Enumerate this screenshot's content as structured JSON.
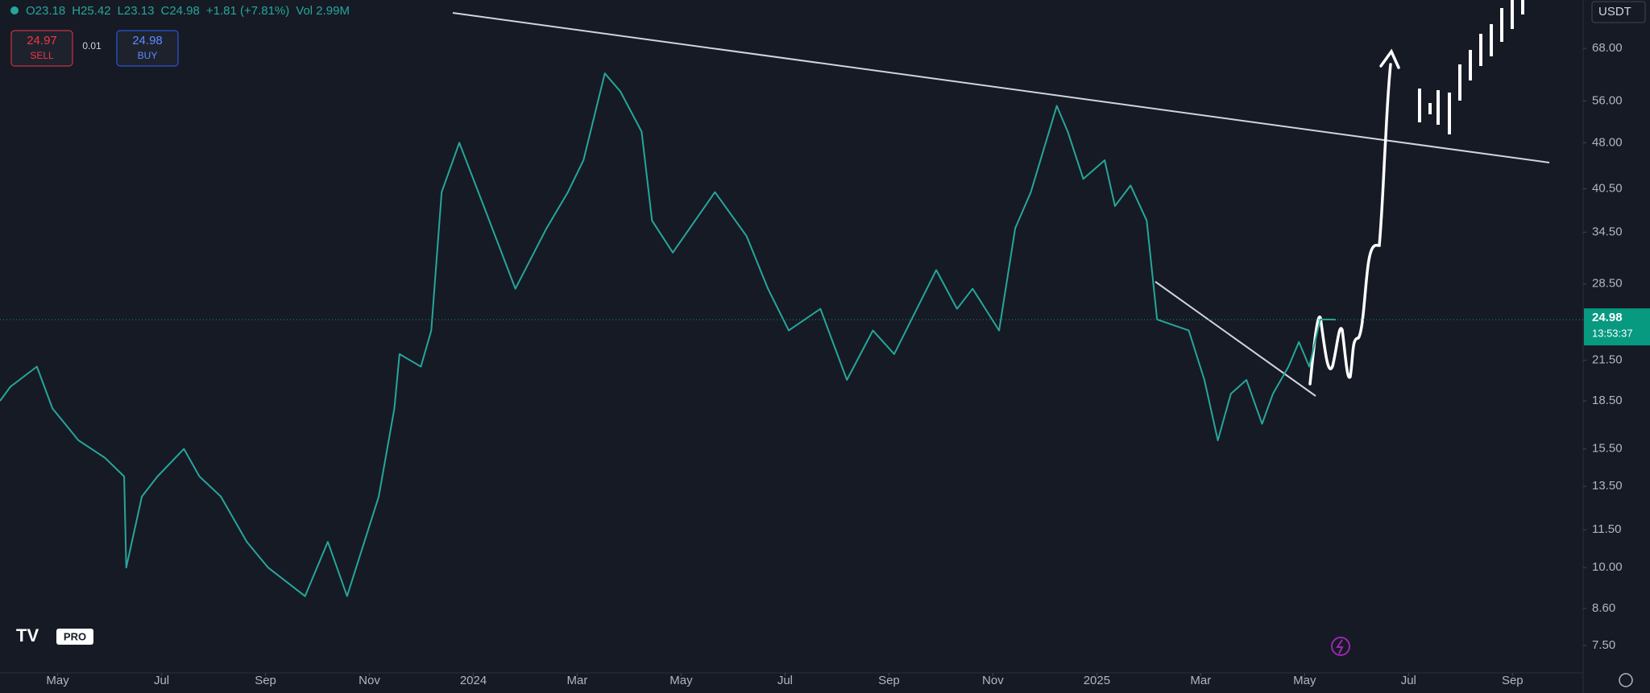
{
  "toolbar": {
    "symbol_values": [
      "O23.18",
      "H25.42",
      "L23.13",
      "C24.98",
      "+1.81 (+7.81%)",
      "Vol 2.99M"
    ],
    "sell_price": "24.97",
    "sell_label": "SELL",
    "spread": "0.01",
    "buy_price": "24.98",
    "buy_label": "BUY",
    "currency": "USDT",
    "countdown": "13:53:37",
    "logo_badge": "PRO"
  },
  "chart_data": {
    "type": "line",
    "scale": "log",
    "grid": false,
    "color": "#26a69a",
    "last_price": 24.98,
    "last_price_color": "#089981",
    "x": [
      2.89,
      3.09,
      3.6,
      3.9,
      4.4,
      4.91,
      5.28,
      5.32,
      5.62,
      5.92,
      6.43,
      6.73,
      7.14,
      7.64,
      8.05,
      8.76,
      9.2,
      9.57,
      10.18,
      10.48,
      10.58,
      10.99,
      11.19,
      11.39,
      11.73,
      12.2,
      12.81,
      13.41,
      13.82,
      14.12,
      14.53,
      14.83,
      15.24,
      15.44,
      15.84,
      16.65,
      17.26,
      17.67,
      18.07,
      18.68,
      19.19,
      19.69,
      20.1,
      20.91,
      21.31,
      21.61,
      22.12,
      22.43,
      22.73,
      23.23,
      23.44,
      23.74,
      24.15,
      24.35,
      24.65,
      24.96,
      25.16,
      25.77,
      26.07,
      26.33,
      26.58,
      26.88,
      27.18,
      27.39,
      27.69,
      27.89,
      28.09,
      28.3,
      28.6
    ],
    "values": [
      18.5,
      19.5,
      21,
      18,
      16,
      15,
      14,
      10,
      13,
      14,
      15.5,
      14,
      13,
      11,
      10,
      9,
      11,
      9,
      13,
      18,
      22,
      21,
      24,
      40,
      48,
      38,
      28,
      35,
      40,
      45,
      62,
      58,
      50,
      36,
      32,
      40,
      34,
      28,
      24,
      26,
      20,
      24,
      22,
      30,
      26,
      28,
      24,
      35,
      40,
      55,
      50,
      42,
      45,
      38,
      41,
      36,
      25,
      24,
      20,
      16,
      19,
      20,
      17,
      19,
      21,
      23,
      21,
      25,
      24.98
    ],
    "xlim": [
      2.89,
      33.36
    ],
    "ylim": [
      6.78,
      81.3
    ],
    "xticks": [
      {
        "value": 4,
        "label": "May"
      },
      {
        "value": 6,
        "label": "Jul"
      },
      {
        "value": 8,
        "label": "Sep"
      },
      {
        "value": 10,
        "label": "Nov"
      },
      {
        "value": 12,
        "label": "2024"
      },
      {
        "value": 14,
        "label": "Mar"
      },
      {
        "value": 16,
        "label": "May"
      },
      {
        "value": 18,
        "label": "Jul"
      },
      {
        "value": 20,
        "label": "Sep"
      },
      {
        "value": 22,
        "label": "Nov"
      },
      {
        "value": 24,
        "label": "2025"
      },
      {
        "value": 26,
        "label": "Mar"
      },
      {
        "value": 28,
        "label": "May"
      },
      {
        "value": 30,
        "label": "Jul"
      },
      {
        "value": 32,
        "label": "Sep"
      }
    ],
    "yticks": [
      {
        "value": 68,
        "label": "68.00"
      },
      {
        "value": 56,
        "label": "56.00"
      },
      {
        "value": 48,
        "label": "48.00"
      },
      {
        "value": 40.5,
        "label": "40.50"
      },
      {
        "value": 34.5,
        "label": "34.50"
      },
      {
        "value": 28.5,
        "label": "28.50"
      },
      {
        "value": 21.5,
        "label": "21.50"
      },
      {
        "value": 18.5,
        "label": "18.50"
      },
      {
        "value": 15.5,
        "label": "15.50"
      },
      {
        "value": 13.5,
        "label": "13.50"
      },
      {
        "value": 11.5,
        "label": "11.50"
      },
      {
        "value": 10,
        "label": "10.00"
      },
      {
        "value": 8.6,
        "label": "8.60"
      },
      {
        "value": 7.5,
        "label": "7.50"
      }
    ]
  }
}
